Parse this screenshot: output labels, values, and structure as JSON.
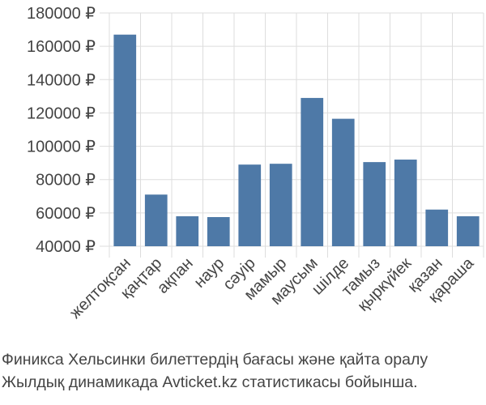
{
  "chart_data": {
    "type": "bar",
    "categories": [
      "желтоқсан",
      "қаңтар",
      "ақпан",
      "наур",
      "сәуір",
      "мамыр",
      "маусым",
      "шілде",
      "тамыз",
      "қыркүйек",
      "қазан",
      "қараша"
    ],
    "values": [
      167000,
      71000,
      58000,
      57500,
      89000,
      89500,
      129000,
      116500,
      90500,
      92000,
      62000,
      58000
    ],
    "ylim": [
      40000,
      180000
    ],
    "yticks": [
      40000,
      60000,
      80000,
      100000,
      120000,
      140000,
      160000,
      180000
    ],
    "ytick_labels": [
      "40000 ₽",
      "60000 ₽",
      "80000 ₽",
      "100000 ₽",
      "120000 ₽",
      "140000 ₽",
      "160000 ₽",
      "180000 ₽"
    ],
    "bar_color": "#4e79a7",
    "grid": true
  },
  "caption": {
    "line1": "Финикса Хельсинки билеттердің бағасы және қайта оралу",
    "line2": "Жылдық динамикада Avticket.kz статистикасы бойынша."
  }
}
